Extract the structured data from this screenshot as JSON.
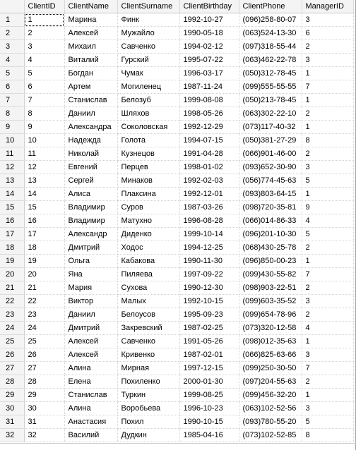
{
  "columns": [
    "ClientID",
    "ClientName",
    "ClientSurname",
    "ClientBirthday",
    "ClientPhone",
    "ManagerID"
  ],
  "rows": [
    {
      "n": "1",
      "id": "1",
      "name": "Марина",
      "surname": "Финк",
      "birthday": "1992-10-27",
      "phone": "(096)258-80-07",
      "manager": "3"
    },
    {
      "n": "2",
      "id": "2",
      "name": "Алексей",
      "surname": "Мужайло",
      "birthday": "1990-05-18",
      "phone": "(063)524-13-30",
      "manager": "6"
    },
    {
      "n": "3",
      "id": "3",
      "name": "Михаил",
      "surname": "Савченко",
      "birthday": "1994-02-12",
      "phone": "(097)318-55-44",
      "manager": "2"
    },
    {
      "n": "4",
      "id": "4",
      "name": "Виталий",
      "surname": "Гурский",
      "birthday": "1995-07-22",
      "phone": "(063)462-22-78",
      "manager": "3"
    },
    {
      "n": "5",
      "id": "5",
      "name": "Богдан",
      "surname": "Чумак",
      "birthday": "1996-03-17",
      "phone": "(050)312-78-45",
      "manager": "1"
    },
    {
      "n": "6",
      "id": "6",
      "name": "Артем",
      "surname": "Могиленец",
      "birthday": "1987-11-24",
      "phone": "(099)555-55-55",
      "manager": "7"
    },
    {
      "n": "7",
      "id": "7",
      "name": "Станислав",
      "surname": "Белозуб",
      "birthday": "1999-08-08",
      "phone": "(050)213-78-45",
      "manager": "1"
    },
    {
      "n": "8",
      "id": "8",
      "name": "Даниил",
      "surname": "Шляхов",
      "birthday": "1998-05-26",
      "phone": "(063)302-22-10",
      "manager": "2"
    },
    {
      "n": "9",
      "id": "9",
      "name": "Александра",
      "surname": "Соколовская",
      "birthday": "1992-12-29",
      "phone": "(073)117-40-32",
      "manager": "1"
    },
    {
      "n": "10",
      "id": "10",
      "name": "Надежда",
      "surname": "Голота",
      "birthday": "1994-07-15",
      "phone": "(050)381-27-29",
      "manager": "8"
    },
    {
      "n": "11",
      "id": "11",
      "name": "Николай",
      "surname": "Кузнецов",
      "birthday": "1991-04-28",
      "phone": "(066)901-46-00",
      "manager": "2"
    },
    {
      "n": "12",
      "id": "12",
      "name": "Евгений",
      "surname": "Перцев",
      "birthday": "1998-01-02",
      "phone": "(093)652-30-90",
      "manager": "3"
    },
    {
      "n": "13",
      "id": "13",
      "name": "Сергей",
      "surname": "Минаков",
      "birthday": "1992-02-03",
      "phone": "(056)774-45-63",
      "manager": "5"
    },
    {
      "n": "14",
      "id": "14",
      "name": "Алиса",
      "surname": "Плаксина",
      "birthday": "1992-12-01",
      "phone": "(093)803-64-15",
      "manager": "1"
    },
    {
      "n": "15",
      "id": "15",
      "name": "Владимир",
      "surname": "Суров",
      "birthday": "1987-03-26",
      "phone": "(098)720-35-81",
      "manager": "9"
    },
    {
      "n": "16",
      "id": "16",
      "name": "Владимир",
      "surname": "Матухно",
      "birthday": "1996-08-28",
      "phone": "(066)014-86-33",
      "manager": "4"
    },
    {
      "n": "17",
      "id": "17",
      "name": "Александр",
      "surname": "Диденко",
      "birthday": "1999-10-14",
      "phone": "(096)201-10-30",
      "manager": "5"
    },
    {
      "n": "18",
      "id": "18",
      "name": "Дмитрий",
      "surname": "Ходос",
      "birthday": "1994-12-25",
      "phone": "(068)430-25-78",
      "manager": "2"
    },
    {
      "n": "19",
      "id": "19",
      "name": "Ольга",
      "surname": "Кабакова",
      "birthday": "1990-11-30",
      "phone": "(096)850-00-23",
      "manager": "1"
    },
    {
      "n": "20",
      "id": "20",
      "name": "Яна",
      "surname": "Пиляева",
      "birthday": "1997-09-22",
      "phone": "(099)430-55-82",
      "manager": "7"
    },
    {
      "n": "21",
      "id": "21",
      "name": "Мария",
      "surname": "Сухова",
      "birthday": "1990-12-30",
      "phone": "(098)903-22-51",
      "manager": "2"
    },
    {
      "n": "22",
      "id": "22",
      "name": "Виктор",
      "surname": "Малых",
      "birthday": "1992-10-15",
      "phone": "(099)603-35-52",
      "manager": "3"
    },
    {
      "n": "23",
      "id": "23",
      "name": "Даниил",
      "surname": "Белоусов",
      "birthday": "1995-09-23",
      "phone": "(099)654-78-96",
      "manager": "2"
    },
    {
      "n": "24",
      "id": "24",
      "name": "Дмитрий",
      "surname": "Закревский",
      "birthday": "1987-02-25",
      "phone": "(073)320-12-58",
      "manager": "4"
    },
    {
      "n": "25",
      "id": "25",
      "name": "Алексей",
      "surname": "Савченко",
      "birthday": "1991-05-26",
      "phone": "(098)012-35-63",
      "manager": "1"
    },
    {
      "n": "26",
      "id": "26",
      "name": "Алексей",
      "surname": "Кривенко",
      "birthday": "1987-02-01",
      "phone": "(066)825-63-66",
      "manager": "3"
    },
    {
      "n": "27",
      "id": "27",
      "name": "Алина",
      "surname": "Мирная",
      "birthday": "1997-12-15",
      "phone": "(099)250-30-50",
      "manager": "7"
    },
    {
      "n": "28",
      "id": "28",
      "name": "Елена",
      "surname": "Похиленко",
      "birthday": "2000-01-30",
      "phone": "(097)204-55-63",
      "manager": "2"
    },
    {
      "n": "29",
      "id": "29",
      "name": "Станислав",
      "surname": "Туркин",
      "birthday": "1999-08-25",
      "phone": "(099)456-32-20",
      "manager": "1"
    },
    {
      "n": "30",
      "id": "30",
      "name": "Алина",
      "surname": "Воробьева",
      "birthday": "1996-10-23",
      "phone": "(063)102-52-56",
      "manager": "3"
    },
    {
      "n": "31",
      "id": "31",
      "name": "Анастасия",
      "surname": "Похил",
      "birthday": "1990-10-15",
      "phone": "(093)780-55-20",
      "manager": "5"
    },
    {
      "n": "32",
      "id": "32",
      "name": "Василий",
      "surname": "Дудкин",
      "birthday": "1985-04-16",
      "phone": "(073)102-52-85",
      "manager": "8"
    }
  ]
}
